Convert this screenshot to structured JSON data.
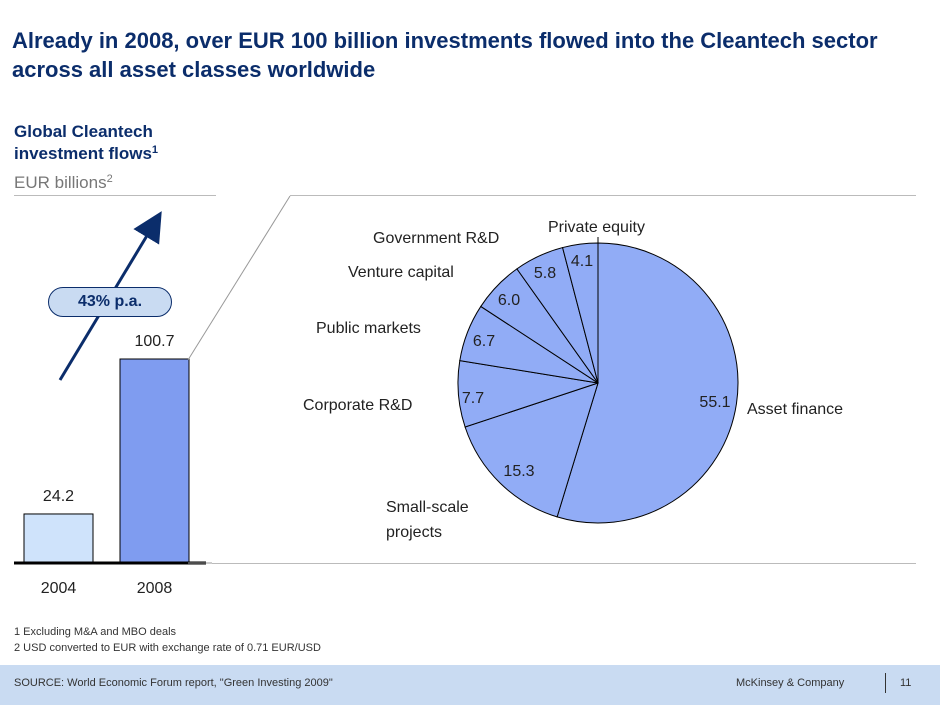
{
  "title": "Already in 2008, over EUR 100 billion investments flowed into the Cleantech sector across all asset classes worldwide",
  "subtitle": "Global Cleantech investment flows",
  "subtitle_ref": "1",
  "unit": "EUR billions",
  "unit_ref": "2",
  "colors": {
    "bar_2004": "#cfe3fb",
    "bar_2008": "#7f9cf0",
    "pie_fill": "#91acf6",
    "title": "#0b2d6b",
    "footer_bg": "#c9dbf2"
  },
  "growth": {
    "label": "43% p.a.",
    "icon": "arrow-up-right-icon"
  },
  "chart_data": [
    {
      "type": "bar",
      "categories": [
        "2004",
        "2008"
      ],
      "values": [
        24.2,
        100.7
      ],
      "data_labels": [
        "24.2",
        "100.7"
      ],
      "ylim": [
        0,
        100.7
      ]
    },
    {
      "type": "pie",
      "slices": [
        {
          "label": "Asset finance",
          "value": 55.1,
          "value_label": "55.1"
        },
        {
          "label": "Small-scale projects",
          "value": 15.3,
          "value_label": "15.3"
        },
        {
          "label": "Corporate R&D",
          "value": 7.7,
          "value_label": "7.7"
        },
        {
          "label": "Public markets",
          "value": 6.7,
          "value_label": "6.7"
        },
        {
          "label": "Venture capital",
          "value": 6.0,
          "value_label": "6.0"
        },
        {
          "label": "Government R&D",
          "value": 5.8,
          "value_label": "5.8"
        },
        {
          "label": "Private equity",
          "value": 4.1,
          "value_label": "4.1"
        }
      ]
    }
  ],
  "footnotes": [
    "1 Excluding M&A and MBO deals",
    "2 USD converted to EUR with exchange rate of 0.71 EUR/USD"
  ],
  "footer": {
    "source": "SOURCE:  World Economic Forum report, \"Green Investing 2009\"",
    "brand": "McKinsey & Company",
    "page": "11"
  }
}
